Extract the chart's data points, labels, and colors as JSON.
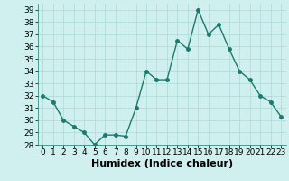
{
  "x": [
    0,
    1,
    2,
    3,
    4,
    5,
    6,
    7,
    8,
    9,
    10,
    11,
    12,
    13,
    14,
    15,
    16,
    17,
    18,
    19,
    20,
    21,
    22,
    23
  ],
  "y": [
    32,
    31.5,
    30,
    29.5,
    29,
    28,
    28.8,
    28.8,
    28.7,
    31,
    34,
    33.3,
    33.3,
    36.5,
    35.8,
    39,
    37,
    37.8,
    35.8,
    34,
    33.3,
    32,
    31.5,
    30.3
  ],
  "line_color": "#1a7a6e",
  "marker": "o",
  "marker_size": 2.5,
  "line_width": 1.0,
  "bg_color": "#cff0ee",
  "grid_color": "#aadad6",
  "xlabel": "Humidex (Indice chaleur)",
  "ylim": [
    28,
    39.5
  ],
  "yticks": [
    28,
    29,
    30,
    31,
    32,
    33,
    34,
    35,
    36,
    37,
    38,
    39
  ],
  "xticks": [
    0,
    1,
    2,
    3,
    4,
    5,
    6,
    7,
    8,
    9,
    10,
    11,
    12,
    13,
    14,
    15,
    16,
    17,
    18,
    19,
    20,
    21,
    22,
    23
  ],
  "xlabel_fontsize": 8,
  "tick_fontsize": 6.5
}
